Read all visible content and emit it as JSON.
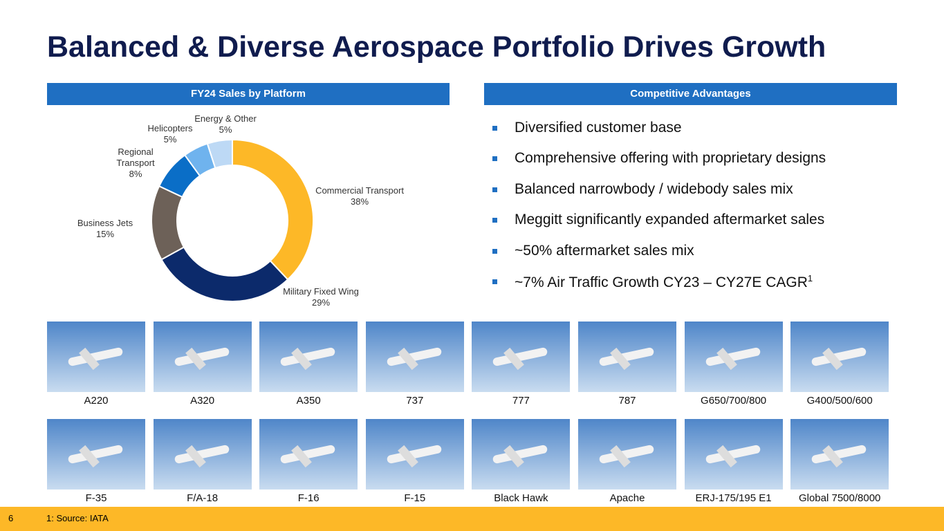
{
  "title": "Balanced & Diverse Aerospace Portfolio Drives Growth",
  "left_header": "FY24 Sales by Platform",
  "right_header": "Competitive Advantages",
  "chart_data": {
    "type": "pie",
    "categories": [
      "Commercial Transport",
      "Military Fixed Wing",
      "Business Jets",
      "Regional Transport",
      "Helicopters",
      "Energy & Other"
    ],
    "values": [
      38,
      29,
      15,
      8,
      5,
      5
    ],
    "value_labels": [
      "38%",
      "29%",
      "15%",
      "8%",
      "5%",
      "5%"
    ],
    "colors": [
      "#fdb827",
      "#0c2a6b",
      "#6d6158",
      "#0a6ec7",
      "#6fb3ee",
      "#bdd9f5"
    ]
  },
  "bullets": [
    "Diversified customer base",
    "Comprehensive offering with proprietary designs",
    "Balanced narrowbody / widebody sales mix",
    "Meggitt significantly expanded aftermarket sales",
    "~50% aftermarket sales mix",
    "~7% Air Traffic Growth CY23 – CY27E CAGR"
  ],
  "bullet_footnote_marker": "1",
  "aircraft_rows": [
    [
      "A220",
      "A320",
      "A350",
      "737",
      "777",
      "787",
      "G650/700/800",
      "G400/500/600"
    ],
    [
      "F-35",
      "F/A-18",
      "F-16",
      "F-15",
      "Black Hawk",
      "Apache",
      "ERJ-175/195 E1",
      "Global 7500/8000"
    ]
  ],
  "footer": {
    "page": "6",
    "note": "1: Source: IATA"
  }
}
